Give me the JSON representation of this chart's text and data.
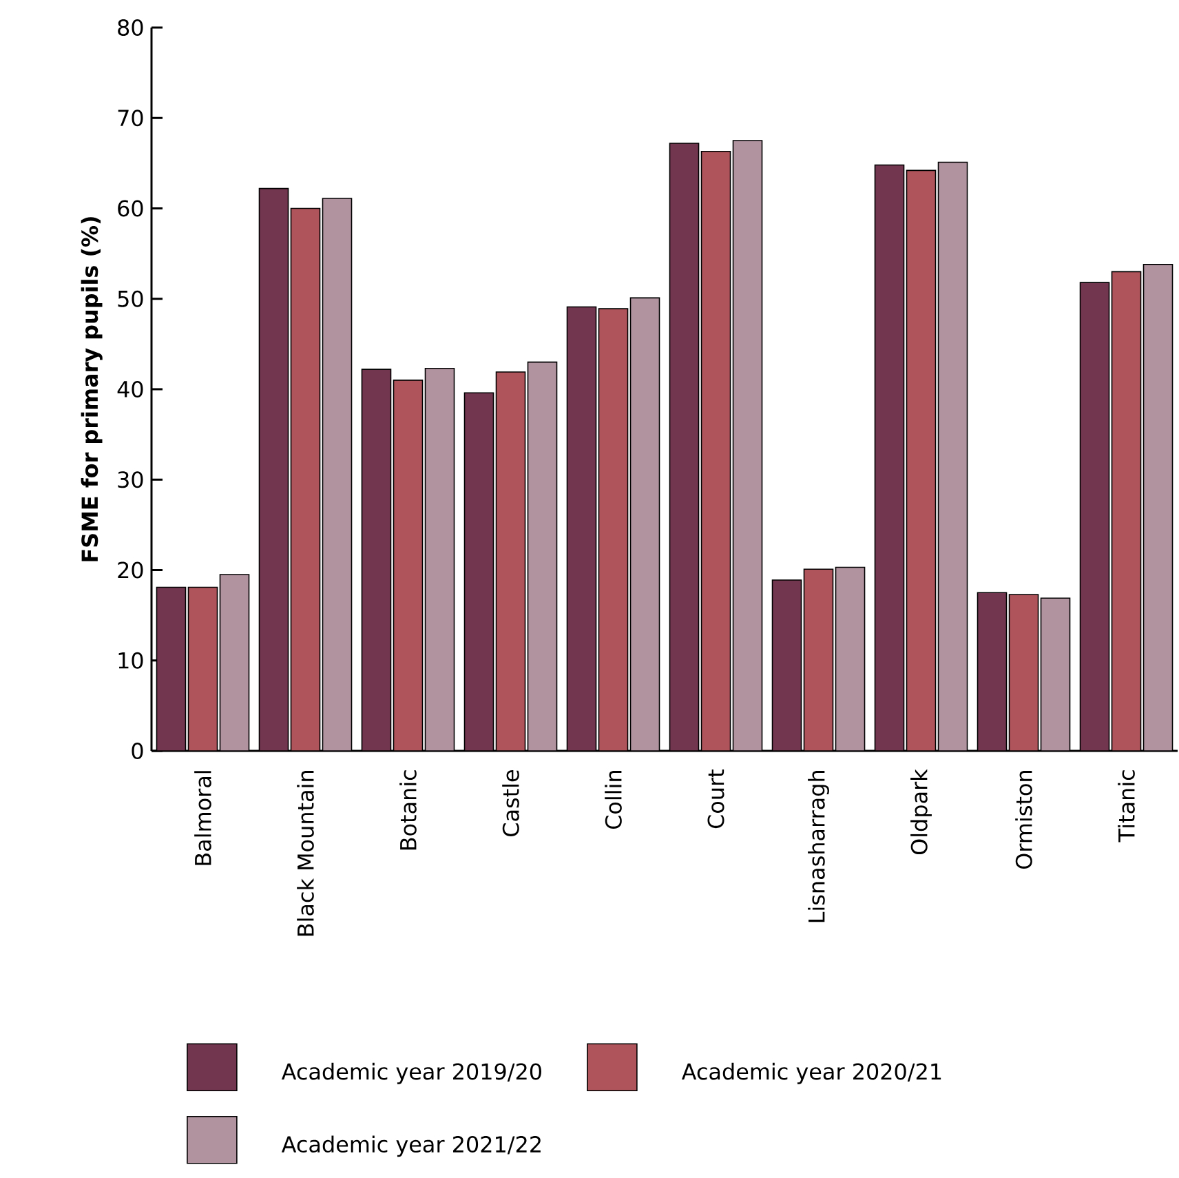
{
  "chart_data": {
    "type": "bar",
    "ylabel": "FSME for primary pupils (%)",
    "categories": [
      "Balmoral",
      "Black Mountain",
      "Botanic",
      "Castle",
      "Collin",
      "Court",
      "Lisnasharragh",
      "Oldpark",
      "Ormiston",
      "Titanic"
    ],
    "series": [
      {
        "name": "Academic year 2019/20",
        "color": "#72364f",
        "values": [
          18.1,
          62.2,
          42.2,
          39.6,
          49.1,
          67.2,
          18.9,
          64.8,
          17.5,
          51.8
        ]
      },
      {
        "name": "Academic year 2020/21",
        "color": "#b0545c",
        "values": [
          18.1,
          60.0,
          41.0,
          41.9,
          48.9,
          66.3,
          20.1,
          64.2,
          17.3,
          53.0
        ]
      },
      {
        "name": "Academic year 2021/22",
        "color": "#b193a0",
        "values": [
          19.5,
          61.1,
          42.3,
          43.0,
          50.1,
          67.5,
          20.3,
          65.1,
          16.9,
          53.8
        ]
      }
    ],
    "ylim": [
      0,
      80
    ],
    "yticks": [
      0,
      10,
      20,
      30,
      40,
      50,
      60,
      70,
      80
    ],
    "legend": "bottom",
    "grid": false
  }
}
